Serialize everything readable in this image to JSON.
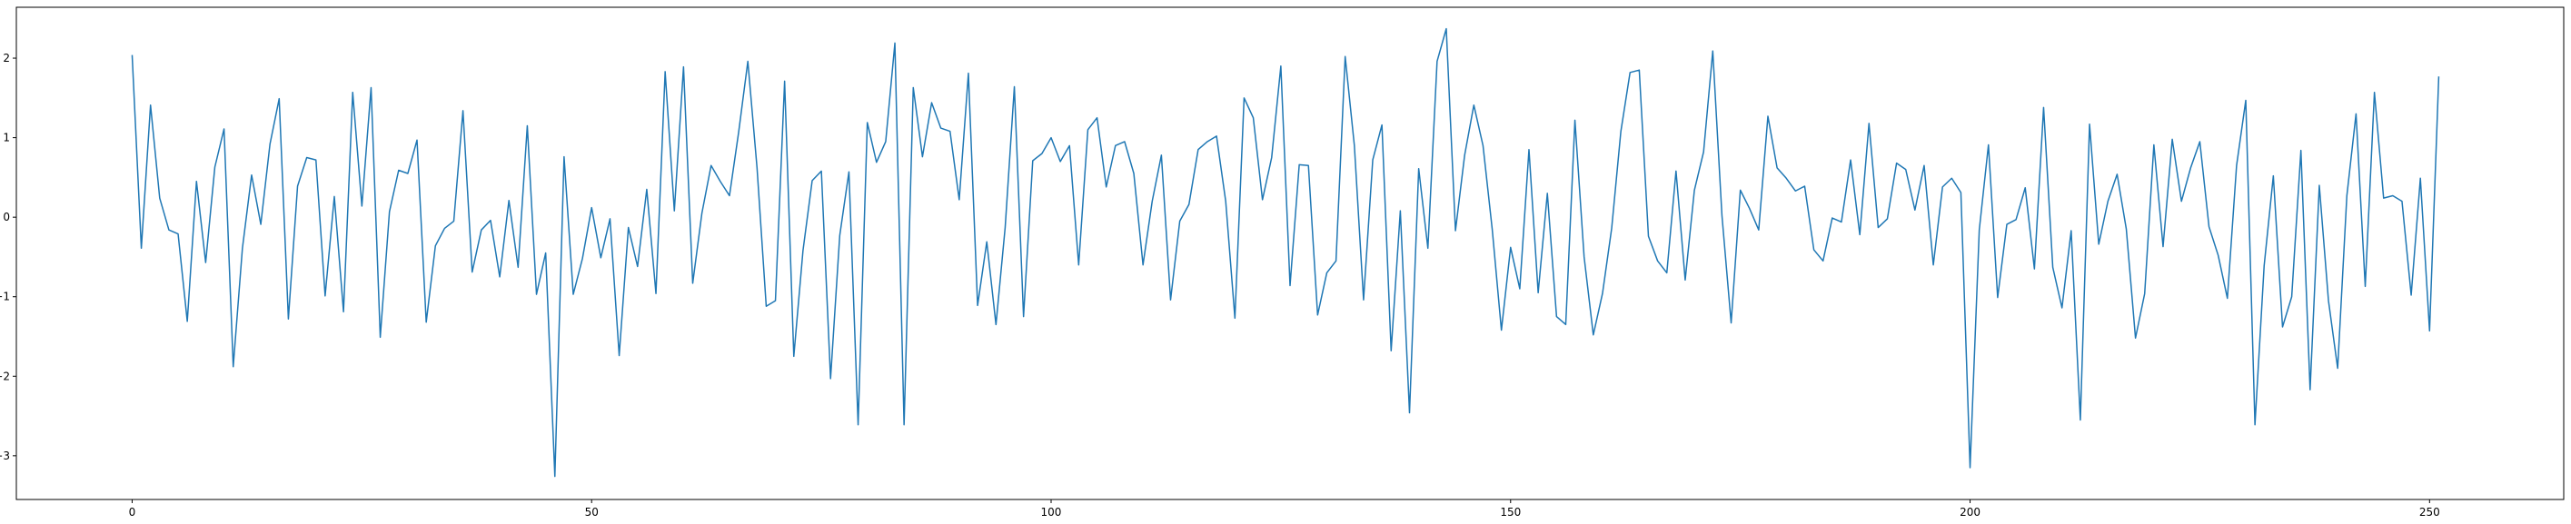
{
  "chart_data": {
    "type": "line",
    "title": "",
    "xlabel": "",
    "ylabel": "",
    "xlim": [
      -12.6,
      264.6
    ],
    "ylim": [
      -3.55,
      2.64
    ],
    "grid": false,
    "x_ticks": [
      0,
      50,
      100,
      150,
      200,
      250
    ],
    "y_ticks": [
      -3,
      -2,
      -1,
      0,
      1,
      2
    ],
    "x_tick_labels": [
      "0",
      "50",
      "100",
      "150",
      "200",
      "250"
    ],
    "y_tick_labels": [
      "−3",
      "−2",
      "−1",
      "0",
      "1",
      "2"
    ],
    "series": [
      {
        "color": "#1f77b4",
        "values": [
          2.04,
          -0.39,
          1.41,
          0.24,
          -0.16,
          -0.21,
          -1.31,
          0.45,
          -0.57,
          0.63,
          1.11,
          -1.88,
          -0.39,
          0.53,
          -0.09,
          0.92,
          1.49,
          -1.28,
          0.39,
          0.75,
          0.72,
          -0.99,
          0.26,
          -1.19,
          1.57,
          0.14,
          1.63,
          -1.51,
          0.07,
          0.59,
          0.55,
          0.97,
          -1.32,
          -0.36,
          -0.14,
          -0.05,
          1.34,
          -0.69,
          -0.16,
          -0.04,
          -0.75,
          0.21,
          -0.63,
          1.15,
          -0.97,
          -0.45,
          -3.26,
          0.76,
          -0.97,
          -0.52,
          0.12,
          -0.51,
          -0.02,
          -1.74,
          -0.13,
          -0.62,
          0.35,
          -0.96,
          1.83,
          0.08,
          1.89,
          -0.83,
          0.05,
          0.65,
          0.45,
          0.27,
          1.07,
          1.96,
          0.62,
          -1.12,
          -1.05,
          1.71,
          -1.75,
          -0.42,
          0.46,
          0.58,
          -2.03,
          -0.23,
          0.57,
          -2.61,
          1.19,
          0.69,
          0.95,
          2.19,
          -2.61,
          1.63,
          0.76,
          1.44,
          1.12,
          1.08,
          0.22,
          1.81,
          -1.11,
          -0.31,
          -1.35,
          -0.13,
          1.64,
          -1.25,
          0.71,
          0.8,
          1.0,
          0.7,
          0.9,
          -0.6,
          1.1,
          1.25,
          0.38,
          0.9,
          0.95,
          0.55,
          -0.6,
          0.2,
          0.78,
          -1.04,
          -0.05,
          0.16,
          0.85,
          0.95,
          1.02,
          0.2,
          -1.27,
          1.5,
          1.25,
          0.22,
          0.75,
          1.9,
          -0.86,
          0.66,
          0.65,
          -1.23,
          -0.7,
          -0.55,
          2.02,
          0.9,
          -1.04,
          0.72,
          1.16,
          -1.68,
          0.08,
          -2.46,
          0.61,
          -0.39,
          1.96,
          2.37,
          -0.17,
          0.78,
          1.41,
          0.9,
          -0.15,
          -1.42,
          -0.38,
          -0.9,
          0.85,
          -0.95,
          0.3,
          -1.25,
          -1.35,
          1.22,
          -0.5,
          -1.48,
          -0.96,
          -0.14,
          1.08,
          1.82,
          1.85,
          -0.24,
          -0.55,
          -0.7,
          0.58,
          -0.79,
          0.34,
          0.82,
          2.09,
          0.02,
          -1.33,
          0.34,
          0.11,
          -0.16,
          1.27,
          0.62,
          0.49,
          0.33,
          0.39,
          -0.41,
          -0.55,
          -0.01,
          -0.06,
          0.72,
          -0.22,
          1.18,
          -0.13,
          -0.02,
          0.68,
          0.6,
          0.09,
          0.65,
          -0.6,
          0.38,
          0.49,
          0.31,
          -3.15,
          -0.16,
          0.91,
          -1.01,
          -0.09,
          -0.03,
          0.37,
          -0.65,
          1.38,
          -0.63,
          -1.14,
          -0.17,
          -2.55,
          1.17,
          -0.34,
          0.2,
          0.54,
          -0.15,
          -1.52,
          -0.96,
          0.91,
          -0.37,
          0.98,
          0.2,
          0.62,
          0.95,
          -0.12,
          -0.48,
          -1.02,
          0.65,
          1.47,
          -2.61,
          -0.61,
          0.52,
          -1.38,
          -1.0,
          0.84,
          -2.17,
          0.4,
          -1.05,
          -1.9,
          0.27,
          1.3,
          -0.87,
          1.57,
          0.24,
          0.27,
          0.2,
          -0.98,
          0.49,
          -1.43,
          1.77
        ]
      }
    ]
  }
}
